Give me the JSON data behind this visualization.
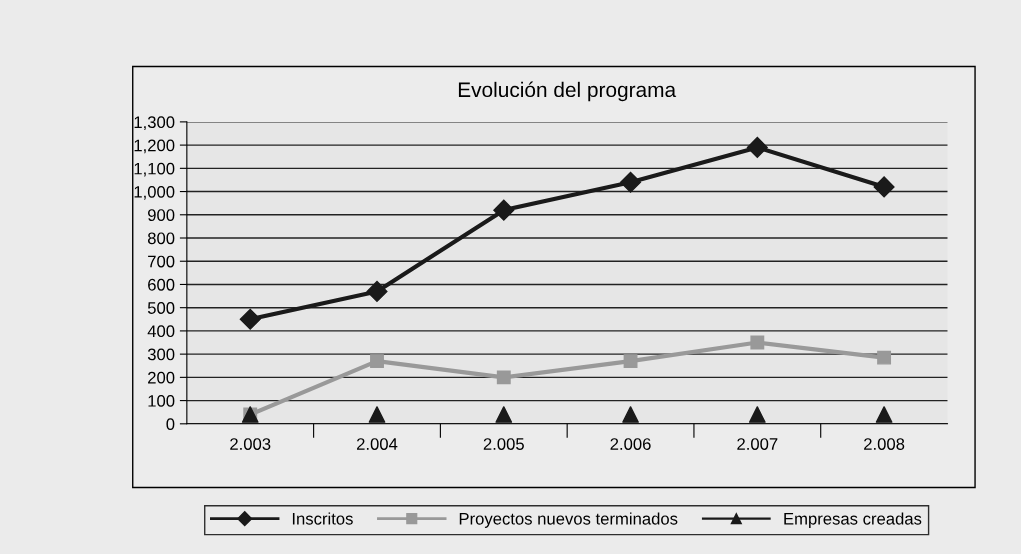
{
  "chart_data": {
    "type": "line",
    "title": "Evolución del programa",
    "categories": [
      "2.003",
      "2.004",
      "2.005",
      "2.006",
      "2.007",
      "2.008"
    ],
    "series": [
      {
        "name": "Inscritos",
        "color": "#1a1a1a",
        "marker": "diamond",
        "values": [
          450,
          570,
          920,
          1040,
          1190,
          1020
        ]
      },
      {
        "name": "Proyectos nuevos terminados",
        "color": "#999999",
        "marker": "square",
        "values": [
          40,
          270,
          200,
          270,
          350,
          285
        ]
      },
      {
        "name": "Empresas creadas",
        "type": "scatter",
        "color": "#1a1a1a",
        "marker": "triangle",
        "values": [
          40,
          40,
          40,
          40,
          40,
          40
        ]
      }
    ],
    "ylim": [
      0,
      1300
    ],
    "yticks": [
      0,
      {
        "value": 100,
        "label": "100"
      },
      200,
      300,
      400,
      500,
      600,
      700,
      800,
      900,
      {
        "value": 1000,
        "label": "1,000"
      },
      {
        "value": 1100,
        "label": "1,100"
      },
      {
        "value": 1200,
        "label": "1,200"
      },
      {
        "value": 1300,
        "label": "1,300"
      }
    ],
    "grid": "y",
    "legend": "bottom"
  }
}
